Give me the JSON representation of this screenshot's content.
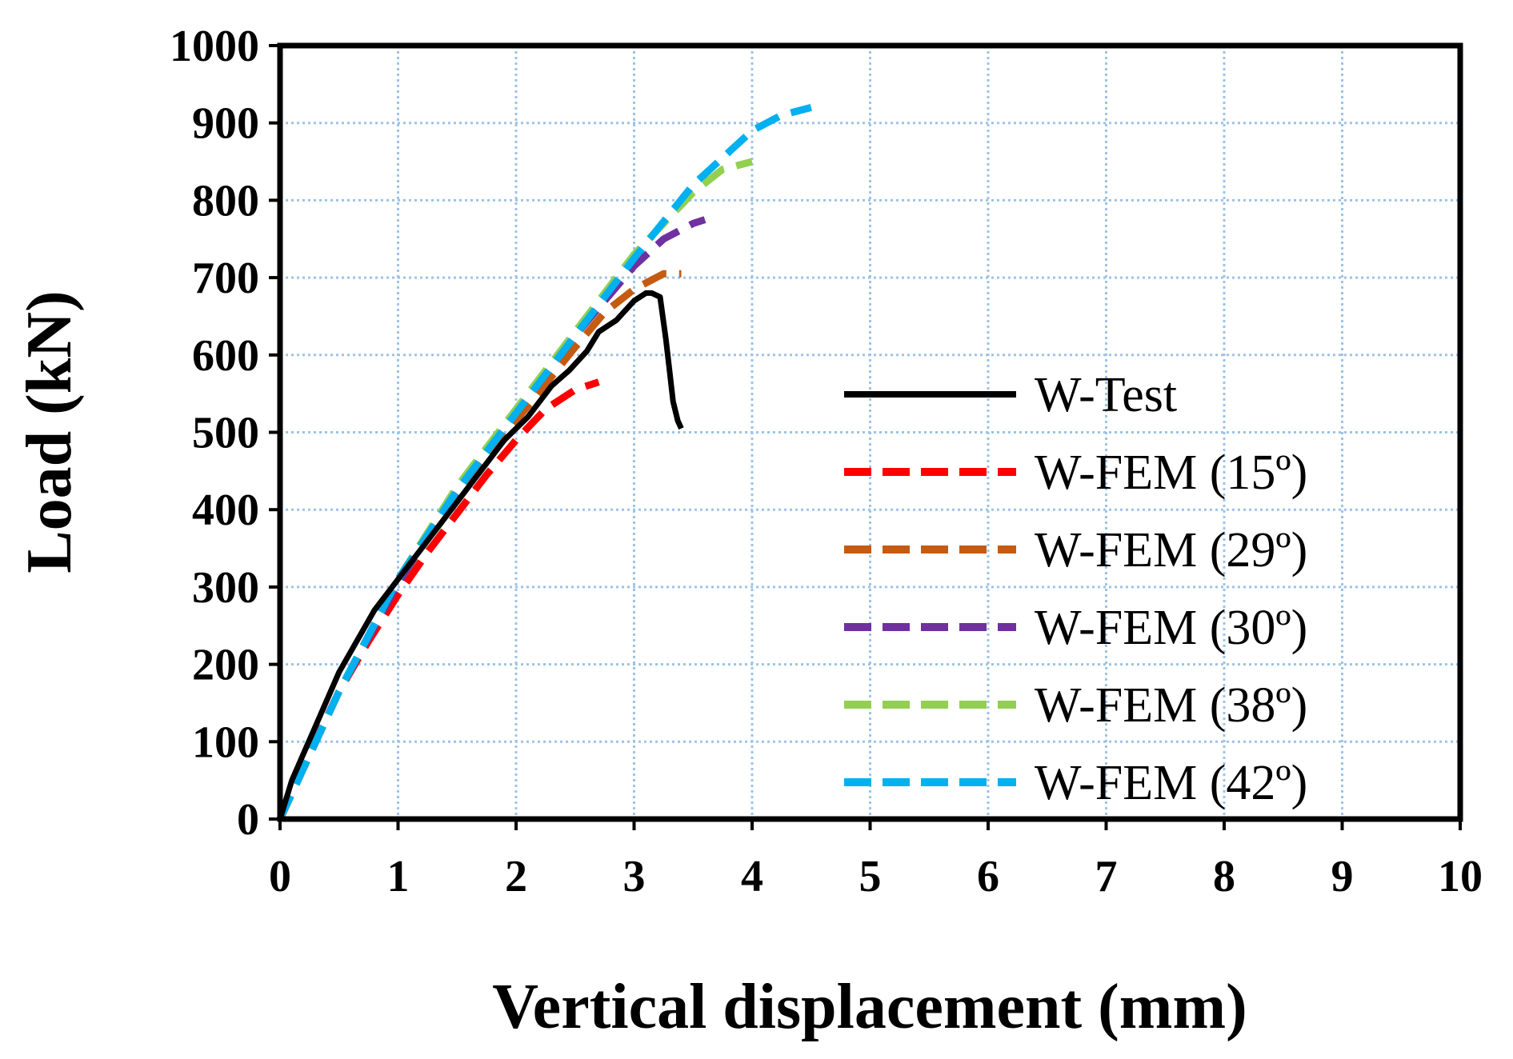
{
  "chart_data": {
    "type": "line",
    "title": "",
    "xlabel": "Vertical displacement (mm)",
    "ylabel": "Load (kN)",
    "xlim": [
      0,
      10
    ],
    "ylim": [
      0,
      1000
    ],
    "xticks": [
      "0",
      "1",
      "2",
      "3",
      "4",
      "5",
      "6",
      "7",
      "8",
      "9",
      "10"
    ],
    "yticks": [
      "0",
      "100",
      "200",
      "300",
      "400",
      "500",
      "600",
      "700",
      "800",
      "900",
      "1000"
    ],
    "grid": true,
    "legend_position": "right",
    "series": [
      {
        "name": "W-Test",
        "color": "#000000",
        "dash": "solid",
        "x": [
          0,
          0.1,
          0.3,
          0.5,
          0.8,
          1.0,
          1.3,
          1.6,
          1.9,
          2.1,
          2.3,
          2.45,
          2.6,
          2.7,
          2.85,
          3.0,
          3.1,
          3.15,
          3.22,
          3.27,
          3.3,
          3.33,
          3.37,
          3.4
        ],
        "y": [
          0,
          50,
          120,
          190,
          270,
          310,
          370,
          430,
          490,
          520,
          560,
          580,
          605,
          630,
          645,
          670,
          680,
          680,
          675,
          620,
          580,
          540,
          515,
          505
        ]
      },
      {
        "name": "W-FEM (15º)",
        "color": "#ff0000",
        "dash": "dashed",
        "x": [
          0,
          0.25,
          0.5,
          0.75,
          1.0,
          1.25,
          1.5,
          1.75,
          2.0,
          2.25,
          2.5,
          2.7
        ],
        "y": [
          0,
          85,
          165,
          230,
          290,
          345,
          395,
          445,
          490,
          530,
          555,
          565
        ]
      },
      {
        "name": "W-FEM (29º)",
        "color": "#c55a11",
        "dash": "dashed",
        "x": [
          0,
          0.5,
          1.0,
          1.5,
          2.0,
          2.5,
          2.75,
          3.0,
          3.25,
          3.4
        ],
        "y": [
          0,
          165,
          305,
          420,
          515,
          610,
          655,
          685,
          705,
          705
        ]
      },
      {
        "name": "W-FEM (30º)",
        "color": "#7030a0",
        "dash": "dashed",
        "x": [
          0,
          0.5,
          1.0,
          1.5,
          2.0,
          2.5,
          3.0,
          3.25,
          3.5,
          3.6
        ],
        "y": [
          0,
          165,
          305,
          425,
          525,
          625,
          715,
          750,
          770,
          775
        ]
      },
      {
        "name": "W-FEM (38º)",
        "color": "#92d050",
        "dash": "dashed",
        "x": [
          0,
          0.5,
          1.0,
          1.5,
          2.0,
          2.5,
          3.0,
          3.5,
          3.75,
          4.0
        ],
        "y": [
          0,
          165,
          310,
          430,
          530,
          630,
          730,
          810,
          840,
          850
        ]
      },
      {
        "name": "W-FEM (42º)",
        "color": "#00b0f0",
        "dash": "dashed",
        "x": [
          0,
          0.5,
          1.0,
          1.5,
          2.0,
          2.5,
          3.0,
          3.5,
          4.0,
          4.25,
          4.5
        ],
        "y": [
          0,
          165,
          310,
          425,
          525,
          625,
          725,
          820,
          890,
          910,
          920
        ]
      }
    ]
  }
}
